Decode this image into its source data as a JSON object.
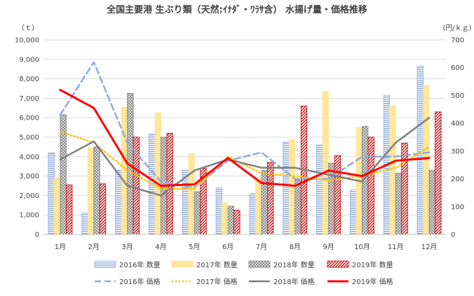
{
  "chart_data": {
    "type": "bar",
    "title": "全国主要港 生ぶり類（天然:ｲﾅﾀﾞ・ﾜﾗｻ含） 水揚げ量・価格推移",
    "ylabel": "（ｔ）",
    "y2label": "(円/ｋｇ)",
    "ylim": [
      0,
      10000
    ],
    "y2lim": [
      0,
      700
    ],
    "yticks": [
      "0",
      "1,000",
      "2,000",
      "3,000",
      "4,000",
      "5,000",
      "6,000",
      "7,000",
      "8,000",
      "9,000",
      "10,000"
    ],
    "y2ticks": [
      "0",
      "100",
      "200",
      "300",
      "400",
      "500",
      "600",
      "700"
    ],
    "categories": [
      "1月",
      "2月",
      "3月",
      "4月",
      "5月",
      "6月",
      "7月",
      "8月",
      "9月",
      "10月",
      "11月",
      "12月"
    ],
    "grid": true,
    "legend_position": "bottom",
    "bar_series": [
      {
        "name": "2016年 数量",
        "color": "#8eaadb",
        "pattern": "hstripe",
        "values": [
          4200,
          1100,
          3300,
          5150,
          3300,
          2400,
          2100,
          4750,
          4600,
          2300,
          7150,
          8650
        ]
      },
      {
        "name": "2017年 数量",
        "color": "#ffe699",
        "pattern": "solid",
        "values": [
          2900,
          4450,
          6550,
          6250,
          4150,
          1650,
          2900,
          4900,
          7350,
          5500,
          6600,
          7650
        ]
      },
      {
        "name": "2018年 数量",
        "color": "#7f7f7f",
        "pattern": "cross",
        "values": [
          6150,
          4500,
          7250,
          5000,
          2200,
          1450,
          3300,
          2800,
          3650,
          5550,
          3150,
          3300
        ]
      },
      {
        "name": "2019年 数量",
        "color": "#c00000",
        "pattern": "diag",
        "values": [
          2550,
          2600,
          5000,
          5200,
          3400,
          1250,
          3700,
          6600,
          4050,
          5000,
          4700,
          6300
        ]
      }
    ],
    "line_series": [
      {
        "name": "2016年 価格",
        "color": "#8eaadb",
        "dash": "dash",
        "values": [
          430,
          620,
          330,
          190,
          170,
          265,
          295,
          200,
          200,
          280,
          280,
          295
        ]
      },
      {
        "name": "2017年 価格",
        "color": "#ffc000",
        "dash": "dot",
        "values": [
          370,
          330,
          230,
          165,
          165,
          280,
          220,
          210,
          195,
          210,
          240,
          315
        ]
      },
      {
        "name": "2018年 価格",
        "color": "#7f7f7f",
        "dash": "solid",
        "values": [
          270,
          335,
          175,
          140,
          230,
          270,
          240,
          240,
          215,
          190,
          330,
          420
        ]
      },
      {
        "name": "2019年 価格",
        "color": "#ff0000",
        "dash": "solid",
        "values": [
          520,
          455,
          255,
          175,
          180,
          275,
          185,
          175,
          230,
          210,
          265,
          275
        ]
      }
    ]
  }
}
